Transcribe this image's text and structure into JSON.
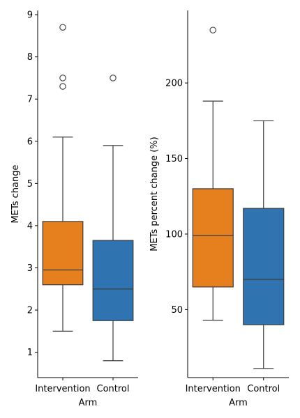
{
  "chart_data": [
    {
      "type": "box",
      "xlabel": "Arm",
      "ylabel": "METs change",
      "categories": [
        "Intervention",
        "Control"
      ],
      "ylim": [
        0.4,
        9.1
      ],
      "yticks": [
        1,
        2,
        3,
        4,
        5,
        6,
        7,
        8,
        9
      ],
      "boxes": [
        {
          "category": "Intervention",
          "color": "#e6801f",
          "whisker_low": 1.5,
          "q1": 2.6,
          "median": 2.95,
          "q3": 4.1,
          "whisker_high": 6.1,
          "outliers": [
            7.3,
            7.5,
            8.7
          ]
        },
        {
          "category": "Control",
          "color": "#2f74b0",
          "whisker_low": 0.8,
          "q1": 1.75,
          "median": 2.5,
          "q3": 3.65,
          "whisker_high": 5.9,
          "outliers": [
            7.5
          ]
        }
      ]
    },
    {
      "type": "box",
      "xlabel": "Arm",
      "ylabel": "METs percent change (%)",
      "categories": [
        "Intervention",
        "Control"
      ],
      "ylim": [
        5,
        248
      ],
      "yticks": [
        50,
        100,
        150,
        200
      ],
      "boxes": [
        {
          "category": "Intervention",
          "color": "#e6801f",
          "whisker_low": 43,
          "q1": 65,
          "median": 99,
          "q3": 130,
          "whisker_high": 188,
          "outliers": [
            235
          ]
        },
        {
          "category": "Control",
          "color": "#2f74b0",
          "whisker_low": 11,
          "q1": 40,
          "median": 70,
          "q3": 117,
          "whisker_high": 175,
          "outliers": []
        }
      ]
    }
  ]
}
